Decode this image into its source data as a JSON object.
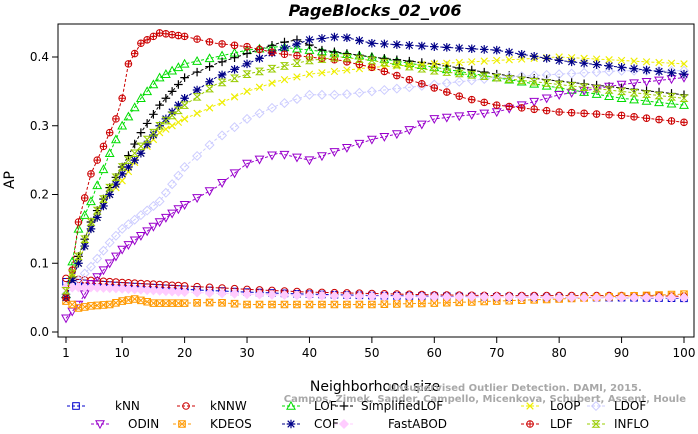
{
  "chart_data": {
    "type": "line",
    "title": "PageBlocks_02_v06",
    "xlabel": "Neighborhood size",
    "ylabel": "AP",
    "xlim": [
      0,
      100
    ],
    "ylim": [
      0,
      0.44
    ],
    "xticks": [
      1,
      10,
      20,
      30,
      40,
      50,
      60,
      70,
      80,
      90,
      100
    ],
    "xtick_labels": [
      "1",
      "10",
      "20",
      "30",
      "40",
      "50",
      "60",
      "70",
      "80",
      "90",
      "100"
    ],
    "yticks": [
      0.0,
      0.1,
      0.2,
      0.3,
      0.4
    ],
    "ytick_labels": [
      "0.0",
      "0.1",
      "0.2",
      "0.3",
      "0.4"
    ],
    "legend_position": "bottom",
    "watermark": [
      "Campos, Zimek, Sander, Campello, Micenkova, Schubert, Assent, Houle",
      "Unsupervised Outlier Detection. DAMI, 2015."
    ],
    "series": [
      {
        "name": "kNN",
        "color": "#0000cc",
        "marker": "square",
        "points": [
          [
            1,
            0.073
          ],
          [
            5,
            0.07
          ],
          [
            10,
            0.067
          ],
          [
            20,
            0.062
          ],
          [
            30,
            0.058
          ],
          [
            40,
            0.055
          ],
          [
            50,
            0.053
          ],
          [
            60,
            0.052
          ],
          [
            70,
            0.051
          ],
          [
            80,
            0.05
          ],
          [
            90,
            0.05
          ],
          [
            100,
            0.049
          ]
        ]
      },
      {
        "name": "kNNW",
        "color": "#cc0000",
        "marker": "circle",
        "points": [
          [
            1,
            0.078
          ],
          [
            5,
            0.075
          ],
          [
            10,
            0.072
          ],
          [
            20,
            0.067
          ],
          [
            30,
            0.062
          ],
          [
            40,
            0.058
          ],
          [
            50,
            0.056
          ],
          [
            60,
            0.054
          ],
          [
            70,
            0.053
          ],
          [
            80,
            0.053
          ],
          [
            90,
            0.053
          ],
          [
            100,
            0.052
          ]
        ]
      },
      {
        "name": "LOF",
        "color": "#00dd00",
        "marker": "triangle",
        "points": [
          [
            1,
            0.055
          ],
          [
            3,
            0.15
          ],
          [
            5,
            0.19
          ],
          [
            8,
            0.26
          ],
          [
            10,
            0.3
          ],
          [
            13,
            0.34
          ],
          [
            16,
            0.37
          ],
          [
            20,
            0.39
          ],
          [
            25,
            0.4
          ],
          [
            30,
            0.41
          ],
          [
            35,
            0.415
          ],
          [
            40,
            0.41
          ],
          [
            50,
            0.4
          ],
          [
            60,
            0.385
          ],
          [
            70,
            0.37
          ],
          [
            80,
            0.355
          ],
          [
            90,
            0.34
          ],
          [
            100,
            0.33
          ]
        ]
      },
      {
        "name": "SimplifiedLOF",
        "color": "#000000",
        "marker": "plus",
        "points": [
          [
            1,
            0.05
          ],
          [
            3,
            0.11
          ],
          [
            5,
            0.16
          ],
          [
            8,
            0.21
          ],
          [
            10,
            0.24
          ],
          [
            13,
            0.29
          ],
          [
            16,
            0.33
          ],
          [
            20,
            0.37
          ],
          [
            25,
            0.39
          ],
          [
            30,
            0.405
          ],
          [
            35,
            0.42
          ],
          [
            38,
            0.425
          ],
          [
            42,
            0.41
          ],
          [
            50,
            0.4
          ],
          [
            60,
            0.39
          ],
          [
            70,
            0.375
          ],
          [
            80,
            0.365
          ],
          [
            90,
            0.355
          ],
          [
            100,
            0.345
          ]
        ]
      },
      {
        "name": "LoOP",
        "color": "#eeee00",
        "marker": "cross",
        "points": [
          [
            1,
            0.06
          ],
          [
            3,
            0.1
          ],
          [
            5,
            0.15
          ],
          [
            8,
            0.2
          ],
          [
            10,
            0.22
          ],
          [
            13,
            0.26
          ],
          [
            16,
            0.29
          ],
          [
            20,
            0.31
          ],
          [
            25,
            0.33
          ],
          [
            30,
            0.35
          ],
          [
            35,
            0.365
          ],
          [
            40,
            0.375
          ],
          [
            45,
            0.38
          ],
          [
            50,
            0.385
          ],
          [
            60,
            0.39
          ],
          [
            70,
            0.395
          ],
          [
            80,
            0.4
          ],
          [
            90,
            0.395
          ],
          [
            100,
            0.39
          ]
        ]
      },
      {
        "name": "LDOF",
        "color": "#ccccff",
        "marker": "diamond",
        "points": [
          [
            1,
            0.055
          ],
          [
            3,
            0.075
          ],
          [
            5,
            0.095
          ],
          [
            8,
            0.13
          ],
          [
            10,
            0.15
          ],
          [
            13,
            0.17
          ],
          [
            16,
            0.19
          ],
          [
            20,
            0.24
          ],
          [
            25,
            0.28
          ],
          [
            30,
            0.31
          ],
          [
            35,
            0.33
          ],
          [
            40,
            0.345
          ],
          [
            45,
            0.345
          ],
          [
            50,
            0.35
          ],
          [
            60,
            0.36
          ],
          [
            70,
            0.37
          ],
          [
            80,
            0.375
          ],
          [
            90,
            0.38
          ],
          [
            100,
            0.38
          ]
        ]
      },
      {
        "name": "ODIN",
        "color": "#9900cc",
        "marker": "triangle-down",
        "points": [
          [
            1,
            0.02
          ],
          [
            3,
            0.04
          ],
          [
            5,
            0.07
          ],
          [
            8,
            0.1
          ],
          [
            10,
            0.12
          ],
          [
            13,
            0.14
          ],
          [
            16,
            0.16
          ],
          [
            20,
            0.185
          ],
          [
            25,
            0.21
          ],
          [
            30,
            0.245
          ],
          [
            35,
            0.26
          ],
          [
            40,
            0.25
          ],
          [
            45,
            0.265
          ],
          [
            50,
            0.28
          ],
          [
            55,
            0.29
          ],
          [
            60,
            0.31
          ],
          [
            70,
            0.32
          ],
          [
            80,
            0.345
          ],
          [
            90,
            0.36
          ],
          [
            100,
            0.37
          ]
        ]
      },
      {
        "name": "KDEOS",
        "color": "#ff9900",
        "marker": "square-x",
        "points": [
          [
            1,
            0.045
          ],
          [
            3,
            0.035
          ],
          [
            5,
            0.038
          ],
          [
            8,
            0.04
          ],
          [
            10,
            0.045
          ],
          [
            12,
            0.048
          ],
          [
            15,
            0.042
          ],
          [
            20,
            0.042
          ],
          [
            25,
            0.043
          ],
          [
            30,
            0.04
          ],
          [
            40,
            0.04
          ],
          [
            50,
            0.04
          ],
          [
            60,
            0.042
          ],
          [
            70,
            0.045
          ],
          [
            80,
            0.048
          ],
          [
            90,
            0.052
          ],
          [
            100,
            0.055
          ]
        ]
      },
      {
        "name": "COF",
        "color": "#000088",
        "marker": "star",
        "points": [
          [
            1,
            0.05
          ],
          [
            3,
            0.1
          ],
          [
            5,
            0.15
          ],
          [
            8,
            0.2
          ],
          [
            10,
            0.23
          ],
          [
            13,
            0.26
          ],
          [
            16,
            0.3
          ],
          [
            20,
            0.34
          ],
          [
            25,
            0.37
          ],
          [
            30,
            0.39
          ],
          [
            35,
            0.41
          ],
          [
            40,
            0.425
          ],
          [
            45,
            0.43
          ],
          [
            50,
            0.42
          ],
          [
            60,
            0.415
          ],
          [
            70,
            0.41
          ],
          [
            80,
            0.395
          ],
          [
            90,
            0.385
          ],
          [
            100,
            0.375
          ]
        ]
      },
      {
        "name": "FastABOD",
        "color": "#ffccff",
        "marker": "diamond-filled",
        "points": [
          [
            1,
            0.065
          ],
          [
            5,
            0.065
          ],
          [
            10,
            0.063
          ],
          [
            20,
            0.058
          ],
          [
            30,
            0.055
          ],
          [
            40,
            0.053
          ],
          [
            50,
            0.052
          ],
          [
            60,
            0.051
          ],
          [
            70,
            0.051
          ],
          [
            80,
            0.05
          ],
          [
            90,
            0.05
          ],
          [
            100,
            0.05
          ]
        ]
      },
      {
        "name": "LDF",
        "color": "#cc0000",
        "marker": "circle-plus",
        "points": [
          [
            1,
            0.05
          ],
          [
            2,
            0.09
          ],
          [
            3,
            0.16
          ],
          [
            5,
            0.23
          ],
          [
            7,
            0.27
          ],
          [
            9,
            0.31
          ],
          [
            10,
            0.34
          ],
          [
            11,
            0.39
          ],
          [
            13,
            0.42
          ],
          [
            16,
            0.435
          ],
          [
            20,
            0.43
          ],
          [
            25,
            0.42
          ],
          [
            30,
            0.415
          ],
          [
            35,
            0.405
          ],
          [
            40,
            0.4
          ],
          [
            45,
            0.395
          ],
          [
            50,
            0.385
          ],
          [
            55,
            0.37
          ],
          [
            60,
            0.355
          ],
          [
            65,
            0.34
          ],
          [
            70,
            0.33
          ],
          [
            80,
            0.32
          ],
          [
            90,
            0.315
          ],
          [
            100,
            0.305
          ]
        ]
      },
      {
        "name": "INFLO",
        "color": "#99cc00",
        "marker": "hourglass",
        "points": [
          [
            1,
            0.06
          ],
          [
            3,
            0.11
          ],
          [
            5,
            0.16
          ],
          [
            8,
            0.21
          ],
          [
            10,
            0.24
          ],
          [
            13,
            0.27
          ],
          [
            16,
            0.3
          ],
          [
            20,
            0.33
          ],
          [
            25,
            0.36
          ],
          [
            30,
            0.375
          ],
          [
            35,
            0.385
          ],
          [
            40,
            0.395
          ],
          [
            45,
            0.4
          ],
          [
            50,
            0.395
          ],
          [
            60,
            0.38
          ],
          [
            70,
            0.37
          ],
          [
            80,
            0.36
          ],
          [
            90,
            0.35
          ],
          [
            100,
            0.34
          ]
        ]
      }
    ]
  }
}
